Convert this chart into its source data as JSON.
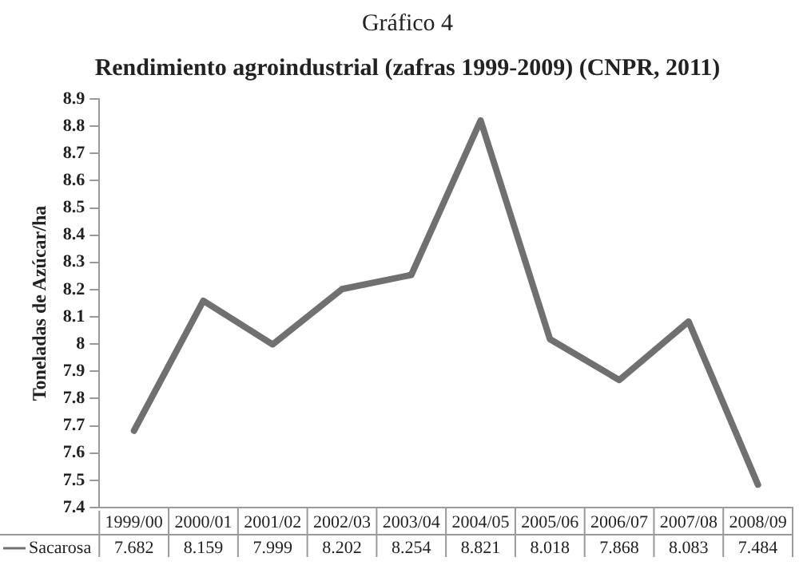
{
  "chart_data": {
    "type": "line",
    "title": "Gráfico 4",
    "subtitle": "Rendimiento agroindustrial (zafras 1999-2009) (CNPR, 2011)",
    "ylabel": "Toneladas de Azúcar/ha",
    "categories": [
      "1999/00",
      "2000/01",
      "2001/02",
      "2002/03",
      "2003/04",
      "2004/05",
      "2005/06",
      "2006/07",
      "2007/08",
      "2008/09"
    ],
    "series": [
      {
        "name": "Sacarosa",
        "color": "#707070",
        "values": [
          7.682,
          8.159,
          7.999,
          8.202,
          8.254,
          8.821,
          8.018,
          7.868,
          8.083,
          7.484
        ]
      }
    ],
    "ylim": [
      7.4,
      8.9
    ],
    "yticks": [
      7.4,
      7.5,
      7.6,
      7.7,
      7.8,
      7.9,
      8,
      8.1,
      8.2,
      8.3,
      8.4,
      8.5,
      8.6,
      8.7,
      8.8,
      8.9
    ],
    "grid": false,
    "legend": "bottom",
    "marker": "none",
    "line_style": "solid",
    "data_labels": true
  }
}
